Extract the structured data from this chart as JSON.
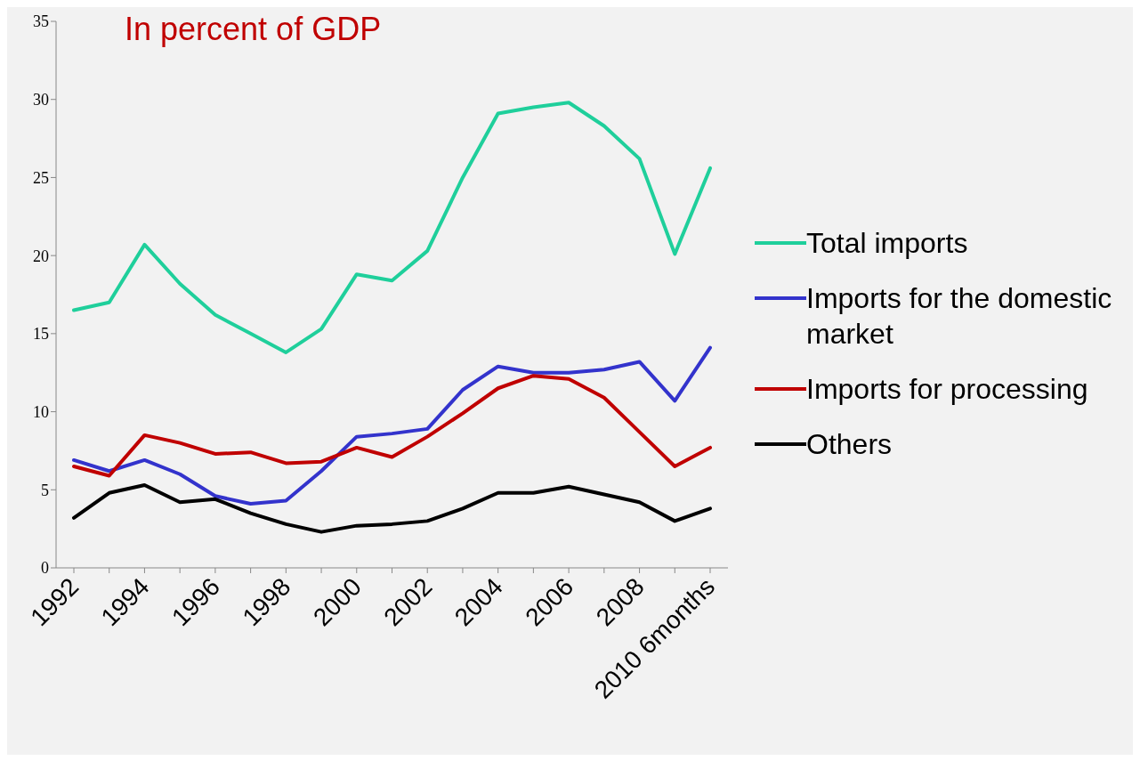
{
  "chart_data": {
    "type": "line",
    "title": "In percent of GDP",
    "categories": [
      "1992",
      null,
      "1994",
      null,
      "1996",
      null,
      "1998",
      null,
      "2000",
      null,
      "2002",
      null,
      "2004",
      null,
      "2006",
      null,
      "2008",
      null,
      "2010 6months"
    ],
    "series": [
      {
        "name": "Total imports",
        "color": "#1fcf9b",
        "values": [
          16.5,
          17.0,
          20.7,
          18.2,
          16.2,
          15.0,
          13.8,
          15.3,
          18.8,
          18.4,
          20.3,
          25.0,
          29.1,
          29.5,
          29.8,
          28.3,
          26.2,
          20.1,
          25.6
        ]
      },
      {
        "name": "Imports for the domestic market",
        "color": "#3333cc",
        "values": [
          6.9,
          6.2,
          6.9,
          6.0,
          4.6,
          4.1,
          4.3,
          6.2,
          8.4,
          8.6,
          8.9,
          11.4,
          12.9,
          12.5,
          12.5,
          12.7,
          13.2,
          10.7,
          14.1
        ]
      },
      {
        "name": "Imports for processing",
        "color": "#c00000",
        "values": [
          6.5,
          5.9,
          8.5,
          8.0,
          7.3,
          7.4,
          6.7,
          6.8,
          7.7,
          7.1,
          8.4,
          9.9,
          11.5,
          12.3,
          12.1,
          10.9,
          8.7,
          6.5,
          7.7
        ]
      },
      {
        "name": "Others",
        "color": "#000000",
        "values": [
          3.2,
          4.8,
          5.3,
          4.2,
          4.4,
          3.5,
          2.8,
          2.3,
          2.7,
          2.8,
          3.0,
          3.8,
          4.8,
          4.8,
          5.2,
          4.7,
          4.2,
          3.0,
          3.8
        ]
      }
    ],
    "ylim": [
      0,
      35
    ],
    "yticks": [
      0,
      5,
      10,
      15,
      20,
      25,
      30,
      35
    ],
    "grid": false,
    "legend": "right"
  }
}
